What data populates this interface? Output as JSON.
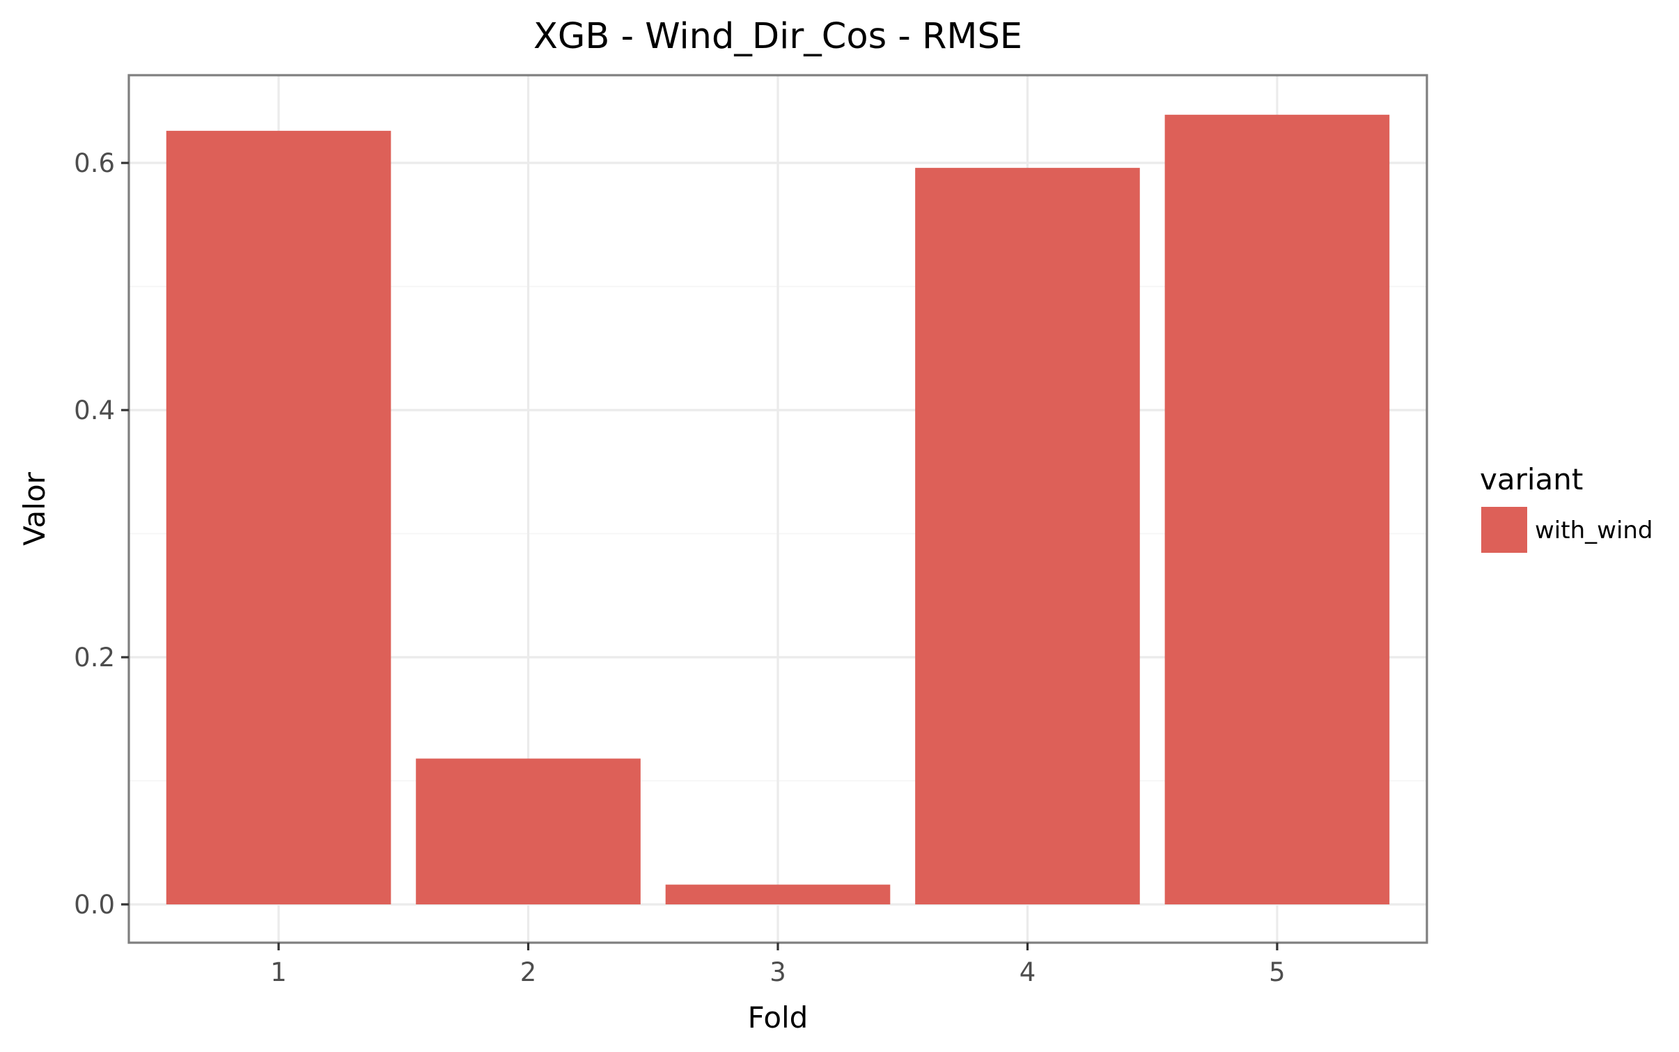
{
  "chart_data": {
    "type": "bar",
    "title": "XGB - Wind_Dir_Cos - RMSE",
    "xlabel": "Fold",
    "ylabel": "Valor",
    "categories": [
      "1",
      "2",
      "3",
      "4",
      "5"
    ],
    "series": [
      {
        "name": "with_wind",
        "values": [
          0.626,
          0.118,
          0.016,
          0.596,
          0.639
        ]
      }
    ],
    "ylim": [
      -0.031,
      0.671
    ],
    "yticks": [
      0.0,
      0.2,
      0.4,
      0.6
    ],
    "ytick_labels": [
      "0.0",
      "0.2",
      "0.4",
      "0.6"
    ],
    "grid": true,
    "legend": {
      "title": "variant",
      "position": "right"
    },
    "colors": {
      "with_wind": "#dd6058"
    }
  }
}
